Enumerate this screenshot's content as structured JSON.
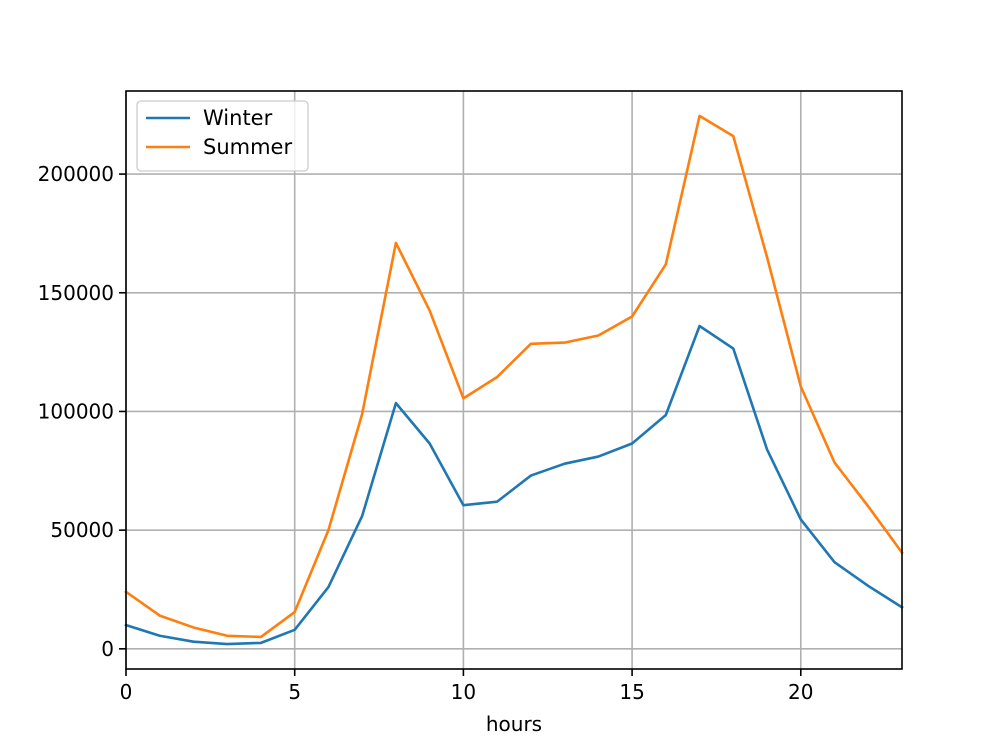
{
  "chart_data": {
    "type": "line",
    "title": "",
    "xlabel": "hours",
    "ylabel": "",
    "x": [
      0,
      1,
      2,
      3,
      4,
      5,
      6,
      7,
      8,
      9,
      10,
      11,
      12,
      13,
      14,
      15,
      16,
      17,
      18,
      19,
      20,
      21,
      22,
      23
    ],
    "xlim": [
      0,
      23
    ],
    "ylim": [
      -8500,
      235000
    ],
    "xticks": [
      0,
      5,
      10,
      15,
      20
    ],
    "xtick_labels": [
      "0",
      "5",
      "10",
      "15",
      "20"
    ],
    "yticks": [
      0,
      50000,
      100000,
      150000,
      200000
    ],
    "ytick_labels": [
      "0",
      "50000",
      "100000",
      "150000",
      "200000"
    ],
    "grid": true,
    "legend_position": "top-left",
    "series": [
      {
        "name": "Winter",
        "color": "#1f77b4",
        "values": [
          10000,
          5500,
          3000,
          2000,
          2500,
          8000,
          26000,
          56000,
          103500,
          86500,
          60500,
          62000,
          73000,
          78000,
          81000,
          86500,
          98500,
          136000,
          126500,
          84000,
          54500,
          36500,
          26500,
          17500
        ]
      },
      {
        "name": "Summer",
        "color": "#ff7f0e",
        "values": [
          24000,
          14000,
          9000,
          5500,
          5000,
          15500,
          50000,
          99000,
          171000,
          142500,
          105500,
          114500,
          128500,
          129000,
          132000,
          140000,
          162000,
          224500,
          216000,
          165000,
          110500,
          78500,
          60000,
          40500
        ]
      }
    ]
  }
}
